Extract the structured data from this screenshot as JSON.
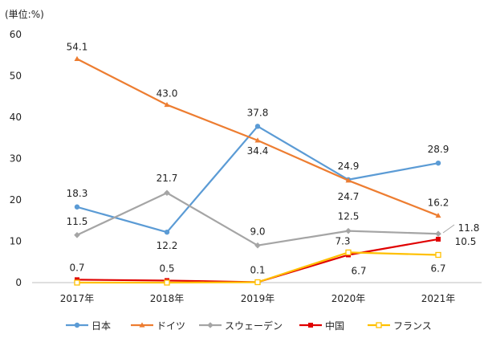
{
  "chart_data": {
    "type": "line",
    "unit_label": "(単位:%)",
    "categories": [
      "2017年",
      "2018年",
      "2019年",
      "2020年",
      "2021年"
    ],
    "ylim": [
      0,
      60
    ],
    "yticks": [
      0,
      10,
      20,
      30,
      40,
      50,
      60
    ],
    "grid": false,
    "legend_position": "bottom",
    "series": [
      {
        "name": "日本",
        "color": "#5B9BD5",
        "marker": "circle",
        "values": [
          18.3,
          12.2,
          37.8,
          24.9,
          28.9
        ],
        "labels": [
          "18.3",
          "12.2",
          "37.8",
          "24.9",
          "28.9"
        ]
      },
      {
        "name": "ドイツ",
        "color": "#ED7D31",
        "marker": "triangle",
        "values": [
          54.1,
          43.0,
          34.4,
          24.7,
          16.2
        ],
        "labels": [
          "54.1",
          "43.0",
          "34.4",
          "24.7",
          "16.2"
        ]
      },
      {
        "name": "スウェーデン",
        "color": "#A5A5A5",
        "marker": "diamond",
        "values": [
          11.5,
          21.7,
          9.0,
          12.5,
          11.8
        ],
        "labels": [
          "11.5",
          "21.7",
          "9.0",
          "12.5",
          "11.8"
        ]
      },
      {
        "name": "中国",
        "color": "#E00000",
        "marker": "square",
        "values": [
          0.7,
          0.5,
          0.1,
          6.7,
          10.5
        ],
        "labels": [
          "0.7",
          "0.5",
          "0.1",
          "6.7",
          "10.5"
        ]
      },
      {
        "name": "フランス",
        "color": "#FFC000",
        "marker": "hollow-square",
        "values": [
          0.0,
          0.0,
          0.1,
          7.3,
          6.7
        ],
        "labels": [
          "",
          "",
          "",
          "7.3",
          "6.7"
        ]
      }
    ]
  }
}
